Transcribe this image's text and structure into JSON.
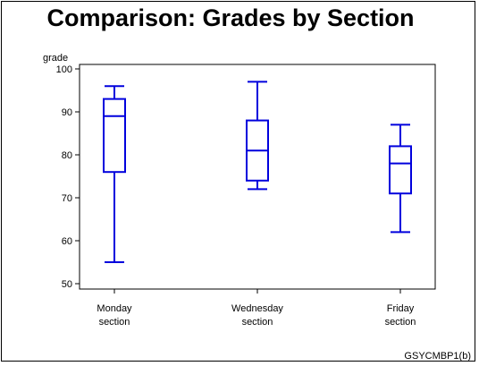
{
  "chart_data": {
    "type": "box",
    "title": "Comparison: Grades by Section",
    "ylabel": "grade",
    "ylim": [
      50,
      100
    ],
    "yticks": [
      50,
      60,
      70,
      80,
      90,
      100
    ],
    "categories": [
      {
        "line1": "Monday",
        "line2": "section"
      },
      {
        "line1": "Wednesday",
        "line2": "section"
      },
      {
        "line1": "Friday",
        "line2": "section"
      }
    ],
    "boxes": [
      {
        "min": 55,
        "q1": 76,
        "median": 89,
        "q3": 93,
        "max": 96
      },
      {
        "min": 72,
        "q1": 74,
        "median": 81,
        "q3": 88,
        "max": 97
      },
      {
        "min": 62,
        "q1": 71,
        "median": 78,
        "q3": 82,
        "max": 87
      }
    ],
    "box_color": "#0000dd",
    "footnote": "GSYCMBP1(b)"
  }
}
